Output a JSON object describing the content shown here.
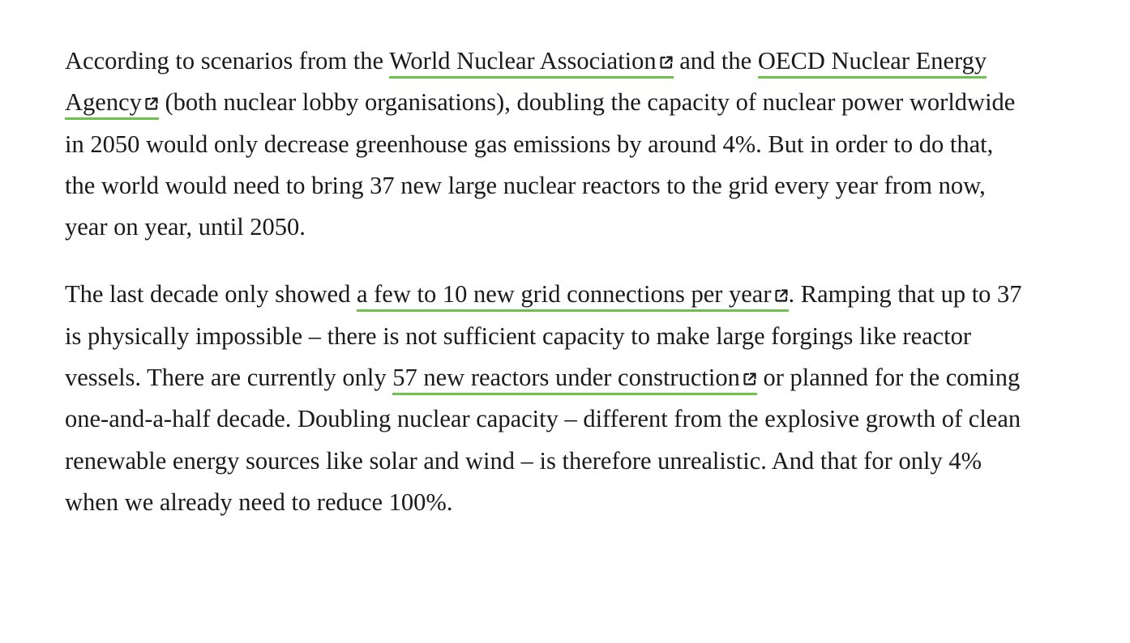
{
  "paragraphs": [
    {
      "segments": [
        {
          "type": "text",
          "text": "According to scenarios from the "
        },
        {
          "type": "link",
          "text": "World Nuclear Association",
          "icon": "external-link-icon"
        },
        {
          "type": "text",
          "text": " and the "
        },
        {
          "type": "link",
          "text": "OECD Nuclear Energy Agency",
          "icon": "external-link-icon"
        },
        {
          "type": "text",
          "text": " (both nuclear lobby organisations), doubling the capacity of nuclear power worldwide in 2050 would only decrease greenhouse gas emissions by around 4%. But in order to do that, the world would need to bring 37 new large nuclear reactors to the grid every year from now, year on year, until 2050."
        }
      ]
    },
    {
      "segments": [
        {
          "type": "text",
          "text": "The last decade only showed "
        },
        {
          "type": "link",
          "text": "a few to 10 new grid connections per year",
          "icon": "external-link-icon"
        },
        {
          "type": "text",
          "text": ". Ramping that up to 37 is physically impossible – there is not sufficient capacity to make large forgings like reactor vessels. There are currently only "
        },
        {
          "type": "link",
          "text": "57 new reactors under construction",
          "icon": "external-link-icon"
        },
        {
          "type": "text",
          "text": " or planned for the coming one-and-a-half decade. Doubling nuclear capacity – different from the explosive growth of clean renewable energy sources like solar and wind – is therefore unrealistic. And that for only 4% when we already need to reduce 100%."
        }
      ]
    }
  ],
  "colors": {
    "text": "#1a1a1a",
    "link_underline": "#6cc24a",
    "background": "#ffffff"
  }
}
